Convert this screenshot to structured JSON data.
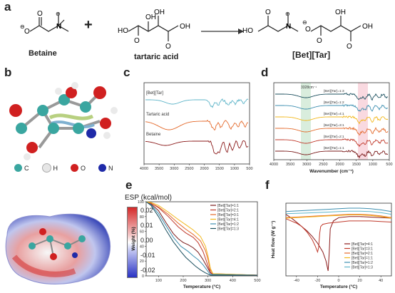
{
  "panels": {
    "a": "a",
    "b": "b",
    "c": "c",
    "d": "d",
    "e": "e",
    "f": "f"
  },
  "scheme": {
    "reactant1": "Betaine",
    "plus": "+",
    "reactant2": "tartaric acid",
    "product": "[Bet][Tar]"
  },
  "legend_atoms": [
    {
      "label": "C",
      "color": "#3aa6a0"
    },
    {
      "label": "H",
      "color": "#e6e6e6"
    },
    {
      "label": "O",
      "color": "#d02020"
    },
    {
      "label": "N",
      "color": "#1f2aa8"
    }
  ],
  "esp": {
    "title": "ESP (kcal/mol)",
    "ticks": [
      "0.02",
      "0.01",
      "0.00",
      "-0.01",
      "-0.02"
    ]
  },
  "colors": {
    "betaine_ir": "#8b1a1a",
    "tartaric_ir": "#e46a2c",
    "betar_ir": "#5fb5c9"
  },
  "chart_data": [
    {
      "id": "c",
      "type": "line",
      "title": "",
      "xlabel": "",
      "ylabel": "",
      "xlim": [
        4000,
        500
      ],
      "xticks": [
        "4000",
        "3500",
        "3000",
        "2500",
        "2000",
        "1500",
        "1000",
        "500"
      ],
      "series": [
        {
          "name": "[Bet][Tar]",
          "color": "#5fb5c9"
        },
        {
          "name": "Tartaric acid",
          "color": "#e46a2c"
        },
        {
          "name": "Betaine",
          "color": "#8b1a1a"
        }
      ]
    },
    {
      "id": "d",
      "type": "line",
      "xlabel": "Wavenumber (cm⁻¹)",
      "xlim": [
        4000,
        500
      ],
      "xticks": [
        "4000",
        "3500",
        "3000",
        "2500",
        "2000",
        "1500",
        "1000",
        "500"
      ],
      "annotation": "3328cm⁻¹",
      "series": [
        {
          "name": "[Bet][Tar]=1:3",
          "color": "#1b4f5e"
        },
        {
          "name": "[Bet][Tar]=1:2",
          "color": "#3d8fb0"
        },
        {
          "name": "[Bet][Tar]=4:1",
          "color": "#f2b81c"
        },
        {
          "name": "[Bet][Tar]=3:1",
          "color": "#e46a2c"
        },
        {
          "name": "[Bet][Tar]=2:1",
          "color": "#c0392b"
        },
        {
          "name": "[Bet][Tar]=1:1",
          "color": "#7a1a1a"
        }
      ]
    },
    {
      "id": "e",
      "type": "line",
      "xlabel": "Temperature (°C)",
      "ylabel": "Weight (%)",
      "xlim": [
        50,
        500
      ],
      "ylim": [
        0,
        100
      ],
      "xticks": [
        "100",
        "200",
        "300",
        "400",
        "500"
      ],
      "yticks": [
        "0",
        "20",
        "40",
        "60",
        "80",
        "100"
      ],
      "series": [
        {
          "name": "[Bet][Tar]=1:1",
          "color": "#7a1a1a",
          "x": [
            50,
            70,
            100,
            130,
            160,
            180,
            200,
            220,
            240,
            260,
            280,
            300,
            310,
            320,
            500
          ],
          "y": [
            100,
            97,
            88,
            72,
            57,
            50,
            45,
            42,
            38,
            32,
            22,
            10,
            4,
            2,
            1
          ]
        },
        {
          "name": "[Bet][Tar]=2:1",
          "color": "#c0392b",
          "x": [
            50,
            70,
            100,
            140,
            180,
            210,
            240,
            260,
            280,
            300,
            310,
            320,
            500
          ],
          "y": [
            100,
            98,
            92,
            80,
            66,
            58,
            52,
            45,
            33,
            14,
            5,
            2,
            1
          ]
        },
        {
          "name": "[Bet][Tar]=3:1",
          "color": "#e46a2c",
          "x": [
            50,
            70,
            100,
            140,
            180,
            210,
            240,
            270,
            290,
            300,
            310,
            320,
            500
          ],
          "y": [
            100,
            98,
            93,
            83,
            71,
            63,
            56,
            47,
            34,
            22,
            8,
            3,
            1
          ]
        },
        {
          "name": "[Bet][Tar]=4:1",
          "color": "#f2b81c",
          "x": [
            50,
            70,
            100,
            140,
            180,
            210,
            240,
            270,
            290,
            300,
            310,
            320,
            500
          ],
          "y": [
            100,
            99,
            95,
            86,
            76,
            69,
            62,
            53,
            40,
            27,
            10,
            3,
            1
          ]
        },
        {
          "name": "[Bet][Tar]=1:2",
          "color": "#3d8fb0",
          "x": [
            50,
            70,
            100,
            130,
            160,
            190,
            220,
            240,
            260,
            280,
            300,
            310,
            500
          ],
          "y": [
            100,
            96,
            84,
            68,
            52,
            40,
            33,
            27,
            22,
            15,
            6,
            2,
            1
          ]
        },
        {
          "name": "[Bet][Tar]=1:3",
          "color": "#1b4f5e",
          "x": [
            50,
            70,
            100,
            130,
            160,
            190,
            210,
            230,
            250,
            270,
            290,
            310,
            500
          ],
          "y": [
            100,
            95,
            80,
            62,
            46,
            33,
            25,
            19,
            13,
            8,
            4,
            1,
            1
          ]
        }
      ]
    },
    {
      "id": "f",
      "type": "line",
      "xlabel": "Temperature (°C)",
      "ylabel": "Heat flow (W g⁻¹)",
      "xlim": [
        -50,
        50
      ],
      "xticks": [
        "-40",
        "-20",
        "0",
        "20",
        "40"
      ],
      "series": [
        {
          "name": "[Bet][Tar]=4:1",
          "color": "#8b1a1a",
          "x": [
            -50,
            -44,
            -40,
            -35,
            -30,
            -25,
            -20,
            -15,
            -12,
            -10,
            -9,
            -8,
            -5,
            0,
            10,
            20,
            30,
            40,
            50
          ],
          "y": [
            0.5,
            0.1,
            -0.2,
            -0.6,
            -1.0,
            -1.5,
            -2.1,
            -2.9,
            -3.7,
            -4.6,
            -3.0,
            -0.8,
            -0.1,
            0.2,
            0.3,
            0.3,
            0.25,
            0.2,
            0.15
          ]
        },
        {
          "name": "[Bet][Tar]=3:1",
          "color": "#c0392b",
          "x": [
            -50,
            -45,
            -40,
            -35,
            -30,
            -25,
            -22,
            -20,
            -19,
            -18,
            -17,
            -15,
            -10,
            0,
            10,
            20,
            30,
            40,
            50
          ],
          "y": [
            0.1,
            -0.1,
            -0.3,
            -0.6,
            -1.1,
            -1.8,
            -2.4,
            -2.9,
            -2.5,
            -1.2,
            -0.6,
            -0.4,
            -0.3,
            -0.2,
            -0.1,
            -0.1,
            -0.1,
            -0.15,
            -0.2
          ]
        },
        {
          "name": "[Bet][Tar]=2:1",
          "color": "#e46a2c",
          "x": [
            -50,
            -40,
            -30,
            -20,
            -10,
            0,
            10,
            20,
            30,
            40,
            50
          ],
          "y": [
            0.2,
            0.25,
            0.3,
            0.35,
            0.4,
            0.45,
            0.5,
            0.5,
            0.45,
            0.35,
            0.2
          ]
        },
        {
          "name": "[Bet][Tar]=1:1",
          "color": "#f2b81c",
          "x": [
            -50,
            -40,
            -30,
            -20,
            -10,
            0,
            10,
            20,
            30,
            40,
            50
          ],
          "y": [
            0.15,
            0.2,
            0.25,
            0.3,
            0.35,
            0.4,
            0.45,
            0.45,
            0.4,
            0.3,
            0.15
          ]
        },
        {
          "name": "[Bet][Tar]=1:2",
          "color": "#3d8fb0",
          "x": [
            -50,
            -40,
            -30,
            -20,
            -10,
            0,
            10,
            20,
            30,
            40,
            50
          ],
          "y": [
            0.75,
            0.8,
            0.85,
            0.9,
            0.95,
            1.0,
            1.05,
            1.05,
            1.0,
            0.9,
            0.75
          ]
        },
        {
          "name": "[Bet][Tar]=1:3",
          "color": "#5fb5c9",
          "x": [
            -50,
            -40,
            -30,
            -20,
            -10,
            0,
            10,
            20,
            30,
            40,
            50
          ],
          "y": [
            0.55,
            0.58,
            0.62,
            0.66,
            0.7,
            0.75,
            0.78,
            0.78,
            0.75,
            0.65,
            0.5
          ]
        }
      ]
    }
  ]
}
